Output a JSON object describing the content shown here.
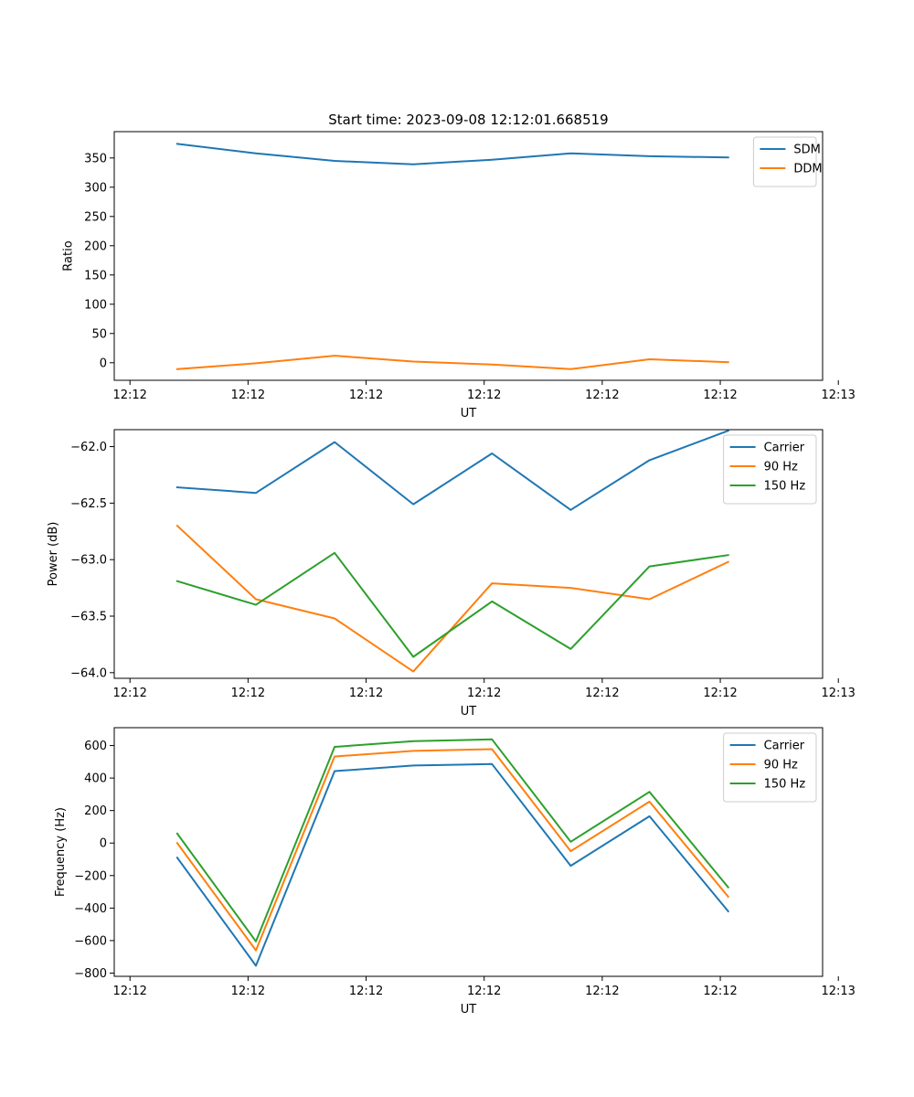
{
  "figure": {
    "title": "Start time: 2023-09-08 12:12:01.668519"
  },
  "chart_data": [
    {
      "type": "line",
      "title": "Start time: 2023-09-08 12:12:01.668519",
      "xlabel": "UT",
      "ylabel": "Ratio",
      "x": [
        1,
        2,
        3,
        4,
        5,
        6,
        7,
        8
      ],
      "xlim": [
        0.2,
        9.2
      ],
      "x_ticks": [
        0.4,
        1.9,
        3.4,
        4.9,
        6.4,
        7.9,
        9.4
      ],
      "x_tick_labels": [
        "12:12",
        "12:12",
        "12:12",
        "12:12",
        "12:12",
        "12:12",
        "12:13"
      ],
      "ylim": [
        -30,
        395
      ],
      "y_ticks": [
        0,
        50,
        100,
        150,
        200,
        250,
        300,
        350
      ],
      "y_tick_labels": [
        "0",
        "50",
        "100",
        "150",
        "200",
        "250",
        "300",
        "350"
      ],
      "legend_position": "top-right",
      "series": [
        {
          "name": "SDM",
          "color": "#1f77b4",
          "values": [
            374,
            358,
            345,
            339,
            347,
            358,
            353,
            351
          ]
        },
        {
          "name": "DDM",
          "color": "#ff7f0e",
          "values": [
            -11,
            -1,
            12,
            2,
            -3,
            -11,
            6,
            1
          ]
        }
      ]
    },
    {
      "type": "line",
      "title": "",
      "xlabel": "UT",
      "ylabel": "Power (dB)",
      "x": [
        1,
        2,
        3,
        4,
        5,
        6,
        7,
        8
      ],
      "xlim": [
        0.2,
        9.2
      ],
      "x_ticks": [
        0.4,
        1.9,
        3.4,
        4.9,
        6.4,
        7.9,
        9.4
      ],
      "x_tick_labels": [
        "12:12",
        "12:12",
        "12:12",
        "12:12",
        "12:12",
        "12:12",
        "12:13"
      ],
      "ylim": [
        -64.05,
        -61.85
      ],
      "y_ticks": [
        -62.0,
        -62.5,
        -63.0,
        -63.5,
        -64.0
      ],
      "y_tick_labels": [
        "−62.0",
        "−62.5",
        "−63.0",
        "−63.5",
        "−64.0"
      ],
      "legend_position": "top-right",
      "series": [
        {
          "name": "Carrier",
          "color": "#1f77b4",
          "values": [
            -62.36,
            -62.41,
            -61.96,
            -62.51,
            -62.06,
            -62.56,
            -62.12,
            -61.86
          ]
        },
        {
          "name": "90 Hz",
          "color": "#ff7f0e",
          "values": [
            -62.7,
            -63.35,
            -63.52,
            -63.99,
            -63.21,
            -63.25,
            -63.35,
            -63.02
          ]
        },
        {
          "name": "150 Hz",
          "color": "#2ca02c",
          "values": [
            -63.19,
            -63.4,
            -62.94,
            -63.86,
            -63.37,
            -63.79,
            -63.06,
            -62.96
          ]
        }
      ]
    },
    {
      "type": "line",
      "title": "",
      "xlabel": "UT",
      "ylabel": "Frequency (Hz)",
      "x": [
        1,
        2,
        3,
        4,
        5,
        6,
        7,
        8
      ],
      "xlim": [
        0.2,
        9.2
      ],
      "x_ticks": [
        0.4,
        1.9,
        3.4,
        4.9,
        6.4,
        7.9,
        9.4
      ],
      "x_tick_labels": [
        "12:12",
        "12:12",
        "12:12",
        "12:12",
        "12:12",
        "12:12",
        "12:13"
      ],
      "ylim": [
        -820,
        710
      ],
      "y_ticks": [
        600,
        400,
        200,
        0,
        -200,
        -400,
        -600,
        -800
      ],
      "y_tick_labels": [
        "600",
        "400",
        "200",
        "0",
        "−200",
        "−400",
        "−600",
        "−800"
      ],
      "legend_position": "top-right",
      "series": [
        {
          "name": "Carrier",
          "color": "#1f77b4",
          "values": [
            -90,
            -755,
            443,
            477,
            486,
            -140,
            165,
            -420
          ]
        },
        {
          "name": "90 Hz",
          "color": "#ff7f0e",
          "values": [
            0,
            -660,
            533,
            567,
            578,
            -50,
            255,
            -330
          ]
        },
        {
          "name": "150 Hz",
          "color": "#2ca02c",
          "values": [
            58,
            -605,
            592,
            627,
            638,
            8,
            315,
            -272
          ]
        }
      ]
    }
  ]
}
